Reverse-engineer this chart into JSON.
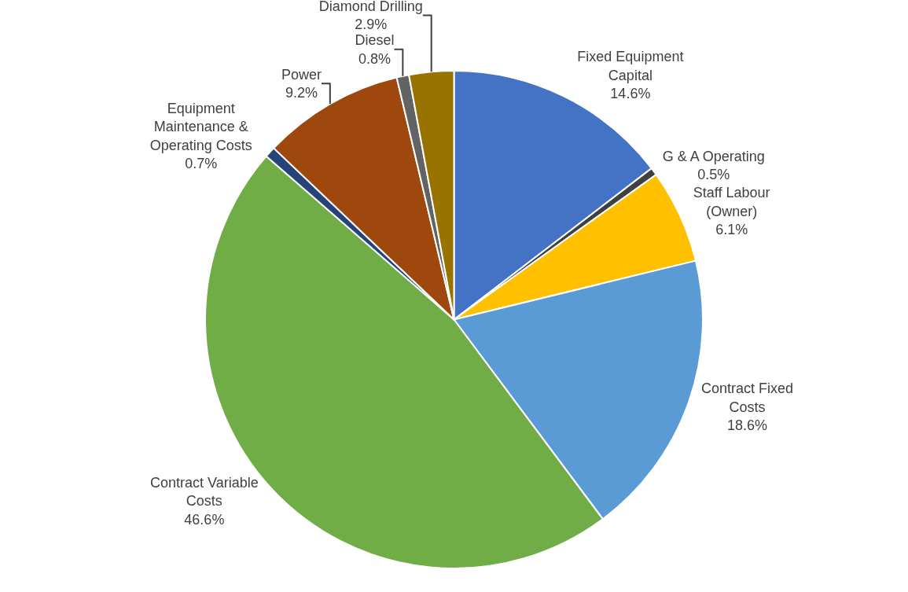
{
  "chart_data": {
    "type": "pie",
    "categories": [
      "Fixed Equipment\nCapital",
      "G & A Operating",
      "Staff Labour\n(Owner)",
      "Contract Fixed\nCosts",
      "Contract Variable\nCosts",
      "Equipment\nMaintenance &\nOperating Costs",
      "Power",
      "Diesel",
      "Diamond Drilling"
    ],
    "values": [
      14.6,
      0.5,
      6.1,
      18.6,
      46.6,
      0.7,
      9.2,
      0.8,
      2.9
    ],
    "value_labels": [
      "14.6%",
      "0.5%",
      "6.1%",
      "18.6%",
      "46.6%",
      "0.7%",
      "9.2%",
      "0.8%",
      "2.9%"
    ],
    "colors": [
      "#4472c4",
      "#404040",
      "#ffc000",
      "#5b9bd5",
      "#70ad47",
      "#264478",
      "#9e480e",
      "#636363",
      "#997300"
    ],
    "legend": false
  }
}
